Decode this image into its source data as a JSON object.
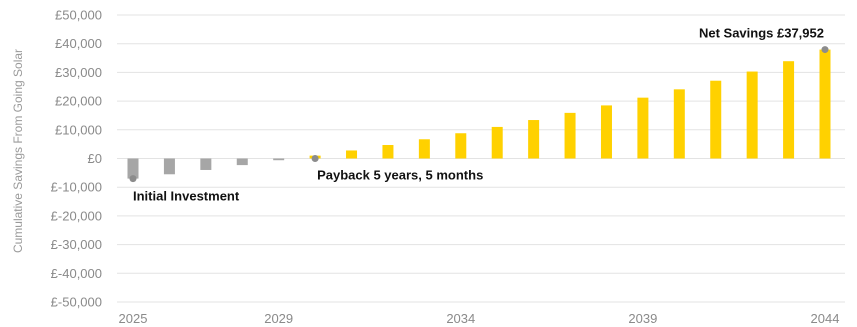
{
  "chart_data": {
    "type": "bar",
    "ylabel": "Cumulative Savings From Going Solar",
    "ylim": [
      -50000,
      50000
    ],
    "y_ticks": [
      50000,
      40000,
      30000,
      20000,
      10000,
      0,
      -10000,
      -20000,
      -30000,
      -40000,
      -50000
    ],
    "y_tick_labels": [
      "£50,000",
      "£40,000",
      "£30,000",
      "£20,000",
      "£10,000",
      "£0",
      "£-10,000",
      "£-20,000",
      "£-30,000",
      "£-40,000",
      "£-50,000"
    ],
    "x_tick_labels": [
      "2025",
      "2029",
      "2034",
      "2039",
      "2044"
    ],
    "grid": true,
    "colors": {
      "negative": "#a6a6a6",
      "positive": "#ffd100",
      "grid": "#e3e3e3",
      "marker": "#8c8c8c"
    },
    "categories": [
      2025,
      2026,
      2027,
      2028,
      2029,
      2030,
      2031,
      2032,
      2033,
      2034,
      2035,
      2036,
      2037,
      2038,
      2039,
      2040,
      2041,
      2042,
      2043,
      2044
    ],
    "values": [
      -7000,
      -5500,
      -4000,
      -2300,
      -600,
      1000,
      2800,
      4700,
      6700,
      8800,
      11000,
      13400,
      15900,
      18500,
      21200,
      24100,
      27100,
      30300,
      33900,
      37952
    ],
    "annotations": [
      {
        "text": "Initial Investment",
        "x": 2025,
        "y": -7000,
        "anchor": "below"
      },
      {
        "text": "Payback 5 years, 5 months",
        "x": 2030,
        "y": 0,
        "anchor": "right"
      },
      {
        "text": "Net Savings £37,952",
        "x": 2044,
        "y": 37952,
        "anchor": "above"
      }
    ]
  }
}
